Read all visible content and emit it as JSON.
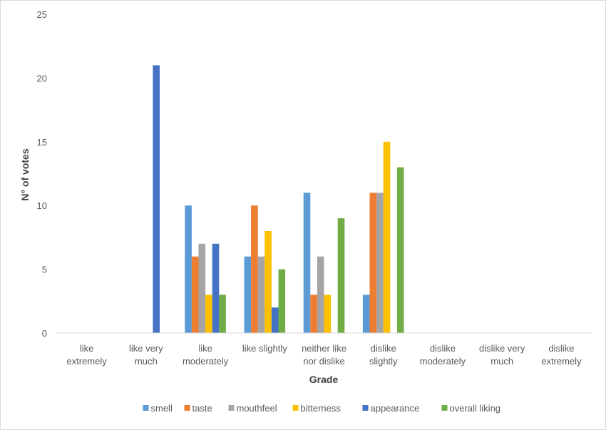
{
  "chart_data": {
    "type": "bar",
    "xlabel": "Grade",
    "ylabel": "N° of votes",
    "ylim": [
      0,
      25
    ],
    "yticks": [
      0,
      5,
      10,
      15,
      20,
      25
    ],
    "grid": false,
    "legend_position": "bottom",
    "categories": [
      [
        "like",
        "extremely"
      ],
      [
        "like very",
        "much"
      ],
      [
        "like",
        "moderately"
      ],
      [
        "like slightly"
      ],
      [
        "neither like",
        "nor dislike"
      ],
      [
        "dislike",
        "slightly"
      ],
      [
        "dislike",
        "moderately"
      ],
      [
        "dislike very",
        "much"
      ],
      [
        "dislike",
        "extremely"
      ]
    ],
    "series": [
      {
        "name": "smell",
        "color": "#5b9bd5",
        "values": [
          0,
          0,
          10,
          6,
          11,
          3,
          0,
          0,
          0
        ]
      },
      {
        "name": "taste",
        "color": "#ed7d31",
        "values": [
          0,
          0,
          6,
          10,
          3,
          11,
          0,
          0,
          0
        ]
      },
      {
        "name": "mouthfeel",
        "color": "#a5a5a5",
        "values": [
          0,
          0,
          7,
          6,
          6,
          11,
          0,
          0,
          0
        ]
      },
      {
        "name": "bitterness",
        "color": "#ffc000",
        "values": [
          0,
          0,
          3,
          8,
          3,
          15,
          0,
          0,
          0
        ]
      },
      {
        "name": "appearance",
        "color": "#4472c4",
        "values": [
          0,
          21,
          7,
          2,
          0,
          0,
          0,
          0,
          0
        ]
      },
      {
        "name": "overall liking",
        "color": "#70ad47",
        "values": [
          0,
          0,
          3,
          5,
          9,
          13,
          0,
          0,
          0
        ]
      }
    ]
  }
}
